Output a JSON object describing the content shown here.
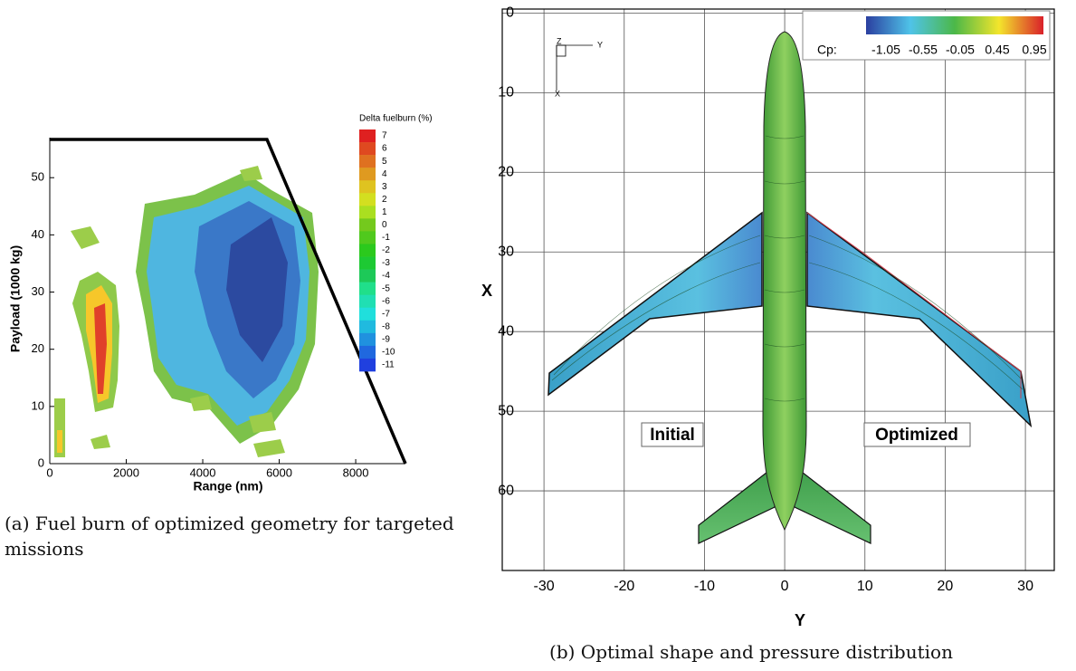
{
  "panel_a": {
    "colorbar_title": "Delta fuelburn (%)",
    "colorbar_labels": [
      "7",
      "6",
      "5",
      "4",
      "3",
      "2",
      "1",
      "0",
      "-1",
      "-2",
      "-3",
      "-4",
      "-5",
      "-6",
      "-7",
      "-8",
      "-9",
      "-10",
      "-11"
    ],
    "xlabel": "Range (nm)",
    "ylabel": "Payload (1000 kg)",
    "xlim": [
      0,
      9300
    ],
    "xticks": [
      0,
      2000,
      4000,
      6000,
      8000
    ],
    "ylim": [
      0,
      57
    ],
    "yticks": [
      0,
      10,
      20,
      30,
      40,
      50
    ],
    "caption": "(a) Fuel burn of optimized geometry for targeted missions"
  },
  "panel_b": {
    "legend_title": "Cp:",
    "legend_labels": [
      "-1.05",
      "-0.55",
      "-0.05",
      "0.45",
      "0.95"
    ],
    "xlabel": "Y",
    "ylabel": "X",
    "xlim": [
      -35.2,
      33.6
    ],
    "xticks": [
      -30,
      -20,
      -10,
      0,
      10,
      20,
      30
    ],
    "ylim": [
      -0.5,
      70
    ],
    "yticks": [
      0,
      10,
      20,
      30,
      40,
      50,
      60
    ],
    "grid": true,
    "annotations": [
      "Initial",
      "Optimized"
    ],
    "triad": [
      "Z",
      "Y",
      "X"
    ],
    "caption": "(b) Optimal shape and pressure distribution"
  }
}
